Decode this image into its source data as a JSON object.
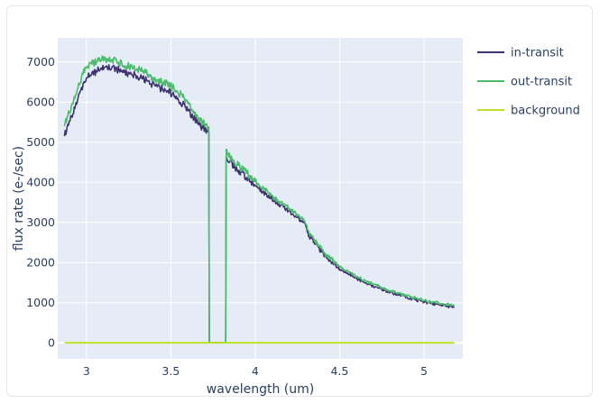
{
  "chart_data": {
    "type": "line",
    "xlabel": "wavelength (um)",
    "ylabel": "flux rate (e-/sec)",
    "xlim": [
      2.83,
      5.23
    ],
    "ylim": [
      -400,
      7600
    ],
    "xticks": [
      3,
      3.5,
      4,
      4.5,
      5
    ],
    "xtick_labels": [
      "3",
      "3.5",
      "4",
      "4.5",
      "5"
    ],
    "yticks": [
      0,
      1000,
      2000,
      3000,
      4000,
      5000,
      6000,
      7000
    ],
    "ytick_labels": [
      "0",
      "1000",
      "2000",
      "3000",
      "4000",
      "5000",
      "6000",
      "7000"
    ],
    "grid": true,
    "legend_position": "right",
    "series": [
      {
        "name": "in-transit",
        "color": "#3e3470",
        "points": [
          [
            2.87,
            5150
          ],
          [
            2.89,
            5450
          ],
          [
            2.92,
            5700
          ],
          [
            2.95,
            6100
          ],
          [
            2.98,
            6450
          ],
          [
            3.0,
            6600
          ],
          [
            3.03,
            6700
          ],
          [
            3.06,
            6750
          ],
          [
            3.09,
            6850
          ],
          [
            3.12,
            6900
          ],
          [
            3.15,
            6850
          ],
          [
            3.18,
            6800
          ],
          [
            3.21,
            6780
          ],
          [
            3.24,
            6700
          ],
          [
            3.27,
            6680
          ],
          [
            3.3,
            6650
          ],
          [
            3.33,
            6580
          ],
          [
            3.36,
            6520
          ],
          [
            3.39,
            6450
          ],
          [
            3.42,
            6380
          ],
          [
            3.45,
            6320
          ],
          [
            3.48,
            6280
          ],
          [
            3.51,
            6200
          ],
          [
            3.54,
            6100
          ],
          [
            3.57,
            5950
          ],
          [
            3.6,
            5800
          ],
          [
            3.63,
            5650
          ],
          [
            3.66,
            5450
          ],
          [
            3.69,
            5350
          ],
          [
            3.725,
            5250
          ],
          [
            3.728,
            0
          ],
          [
            3.825,
            0
          ],
          [
            3.828,
            4650
          ],
          [
            3.85,
            4520
          ],
          [
            3.9,
            4300
          ],
          [
            3.95,
            4120
          ],
          [
            4.0,
            3920
          ],
          [
            4.05,
            3750
          ],
          [
            4.1,
            3580
          ],
          [
            4.15,
            3430
          ],
          [
            4.2,
            3280
          ],
          [
            4.25,
            3130
          ],
          [
            4.29,
            2990
          ],
          [
            4.32,
            2650
          ],
          [
            4.35,
            2500
          ],
          [
            4.38,
            2330
          ],
          [
            4.42,
            2130
          ],
          [
            4.46,
            1980
          ],
          [
            4.5,
            1840
          ],
          [
            4.55,
            1720
          ],
          [
            4.6,
            1600
          ],
          [
            4.65,
            1500
          ],
          [
            4.7,
            1410
          ],
          [
            4.75,
            1330
          ],
          [
            4.8,
            1260
          ],
          [
            4.85,
            1190
          ],
          [
            4.9,
            1130
          ],
          [
            4.95,
            1070
          ],
          [
            5.0,
            1020
          ],
          [
            5.05,
            980
          ],
          [
            5.1,
            940
          ],
          [
            5.15,
            905
          ],
          [
            5.18,
            880
          ]
        ]
      },
      {
        "name": "out-transit",
        "color": "#4bbb6c",
        "points": [
          [
            2.87,
            5400
          ],
          [
            2.89,
            5650
          ],
          [
            2.92,
            5950
          ],
          [
            2.95,
            6350
          ],
          [
            2.98,
            6700
          ],
          [
            3.0,
            6850
          ],
          [
            3.03,
            6950
          ],
          [
            3.06,
            7000
          ],
          [
            3.09,
            7050
          ],
          [
            3.12,
            7080
          ],
          [
            3.15,
            7050
          ],
          [
            3.18,
            7000
          ],
          [
            3.21,
            6960
          ],
          [
            3.24,
            6900
          ],
          [
            3.27,
            6870
          ],
          [
            3.3,
            6830
          ],
          [
            3.33,
            6760
          ],
          [
            3.36,
            6700
          ],
          [
            3.39,
            6620
          ],
          [
            3.42,
            6560
          ],
          [
            3.45,
            6500
          ],
          [
            3.48,
            6450
          ],
          [
            3.51,
            6370
          ],
          [
            3.54,
            6270
          ],
          [
            3.57,
            6120
          ],
          [
            3.6,
            5970
          ],
          [
            3.63,
            5800
          ],
          [
            3.66,
            5600
          ],
          [
            3.69,
            5480
          ],
          [
            3.725,
            5380
          ],
          [
            3.728,
            0
          ],
          [
            3.825,
            0
          ],
          [
            3.828,
            4820
          ],
          [
            3.85,
            4650
          ],
          [
            3.9,
            4420
          ],
          [
            3.95,
            4230
          ],
          [
            4.0,
            4020
          ],
          [
            4.05,
            3850
          ],
          [
            4.1,
            3670
          ],
          [
            4.15,
            3510
          ],
          [
            4.2,
            3360
          ],
          [
            4.25,
            3200
          ],
          [
            4.29,
            3060
          ],
          [
            4.32,
            2720
          ],
          [
            4.35,
            2570
          ],
          [
            4.38,
            2400
          ],
          [
            4.42,
            2200
          ],
          [
            4.46,
            2050
          ],
          [
            4.5,
            1900
          ],
          [
            4.55,
            1780
          ],
          [
            4.6,
            1650
          ],
          [
            4.65,
            1550
          ],
          [
            4.7,
            1460
          ],
          [
            4.75,
            1380
          ],
          [
            4.8,
            1300
          ],
          [
            4.85,
            1230
          ],
          [
            4.9,
            1170
          ],
          [
            4.95,
            1110
          ],
          [
            5.0,
            1060
          ],
          [
            5.05,
            1020
          ],
          [
            5.1,
            980
          ],
          [
            5.15,
            945
          ],
          [
            5.18,
            920
          ]
        ]
      },
      {
        "name": "background",
        "color": "#bddf26",
        "points": [
          [
            2.87,
            0
          ],
          [
            5.18,
            0
          ]
        ]
      }
    ]
  }
}
